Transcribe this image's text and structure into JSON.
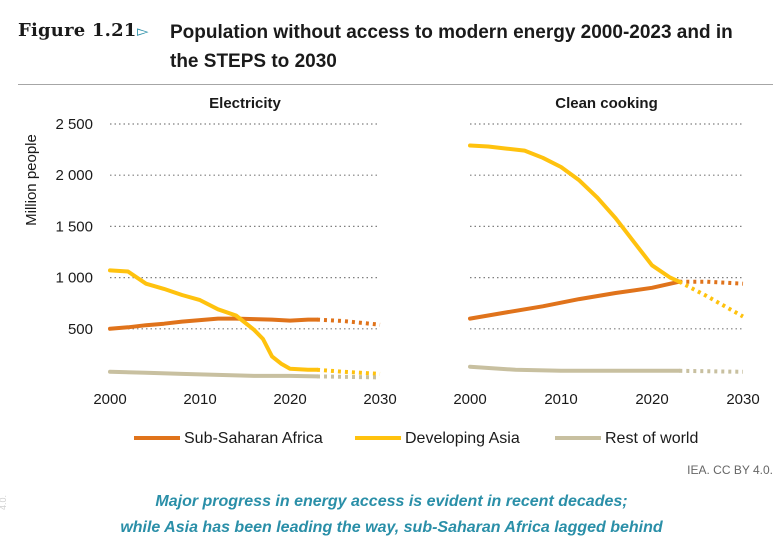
{
  "figure": {
    "label": "Figure 1.21",
    "title_line1": "Population without access to modern energy 2000-2023 and in",
    "title_line2": "the STEPS to 2030"
  },
  "colors": {
    "ssa": "#E0731B",
    "asia": "#FFC20E",
    "row": "#C8C0A0",
    "grid": "#7f7f7f",
    "caption": "#2a8fa8"
  },
  "chart_data": [
    {
      "type": "line",
      "title": "Electricity",
      "ylabel": "Million people",
      "xlabel": "",
      "xlim": [
        2000,
        2030
      ],
      "ylim": [
        0,
        2500
      ],
      "xticks": [
        "2000",
        "2010",
        "2020",
        "2030"
      ],
      "yticks": [
        "500",
        "1 000",
        "1 500",
        "2 000",
        "2 500"
      ],
      "projection_start": 2023,
      "series": [
        {
          "name": "Sub-Saharan Africa",
          "key": "ssa",
          "x": [
            2000,
            2002,
            2004,
            2006,
            2008,
            2010,
            2012,
            2014,
            2016,
            2018,
            2020,
            2022,
            2023
          ],
          "values": [
            500,
            515,
            535,
            550,
            570,
            585,
            600,
            600,
            595,
            590,
            580,
            590,
            590
          ],
          "projection_x": [
            2023,
            2026,
            2030
          ],
          "projection_values": [
            590,
            575,
            540
          ]
        },
        {
          "name": "Developing Asia",
          "key": "asia",
          "x": [
            2000,
            2002,
            2004,
            2006,
            2008,
            2010,
            2012,
            2014,
            2016,
            2017,
            2018,
            2019,
            2020,
            2022,
            2023
          ],
          "values": [
            1070,
            1060,
            940,
            890,
            830,
            780,
            690,
            630,
            490,
            400,
            230,
            160,
            110,
            100,
            100
          ],
          "projection_x": [
            2023,
            2026,
            2030
          ],
          "projection_values": [
            100,
            80,
            60
          ]
        },
        {
          "name": "Rest of world",
          "key": "row",
          "x": [
            2000,
            2004,
            2008,
            2012,
            2016,
            2020,
            2023
          ],
          "values": [
            80,
            70,
            60,
            50,
            40,
            40,
            35
          ],
          "projection_x": [
            2023,
            2030
          ],
          "projection_values": [
            35,
            25
          ]
        }
      ]
    },
    {
      "type": "line",
      "title": "Clean cooking",
      "xlim": [
        2000,
        2030
      ],
      "ylim": [
        0,
        2500
      ],
      "xticks": [
        "2000",
        "2010",
        "2020",
        "2030"
      ],
      "projection_start": 2023,
      "series": [
        {
          "name": "Sub-Saharan Africa",
          "key": "ssa",
          "x": [
            2000,
            2004,
            2008,
            2012,
            2016,
            2020,
            2023
          ],
          "values": [
            600,
            660,
            720,
            790,
            850,
            900,
            960
          ],
          "projection_x": [
            2023,
            2026,
            2030
          ],
          "projection_values": [
            960,
            960,
            940
          ]
        },
        {
          "name": "Developing Asia",
          "key": "asia",
          "x": [
            2000,
            2002,
            2004,
            2006,
            2008,
            2010,
            2012,
            2014,
            2016,
            2018,
            2020,
            2022,
            2023
          ],
          "values": [
            2290,
            2280,
            2260,
            2240,
            2170,
            2080,
            1950,
            1780,
            1580,
            1350,
            1120,
            1000,
            960
          ],
          "projection_x": [
            2023,
            2026,
            2030
          ],
          "projection_values": [
            960,
            820,
            620
          ]
        },
        {
          "name": "Rest of world",
          "key": "row",
          "x": [
            2000,
            2005,
            2010,
            2015,
            2020,
            2023
          ],
          "values": [
            130,
            100,
            90,
            90,
            90,
            90
          ],
          "projection_x": [
            2023,
            2030
          ],
          "projection_values": [
            90,
            80
          ]
        }
      ]
    }
  ],
  "legend": [
    {
      "key": "ssa",
      "label": "Sub-Saharan Africa"
    },
    {
      "key": "asia",
      "label": "Developing Asia"
    },
    {
      "key": "row",
      "label": "Rest of world"
    }
  ],
  "credit": "IEA. CC BY 4.0.",
  "caption_line1": "Major progress in energy access is evident in recent decades;",
  "caption_line2": "while Asia has been leading the way, sub-Saharan Africa lagged behind",
  "side_mark": "4.0."
}
